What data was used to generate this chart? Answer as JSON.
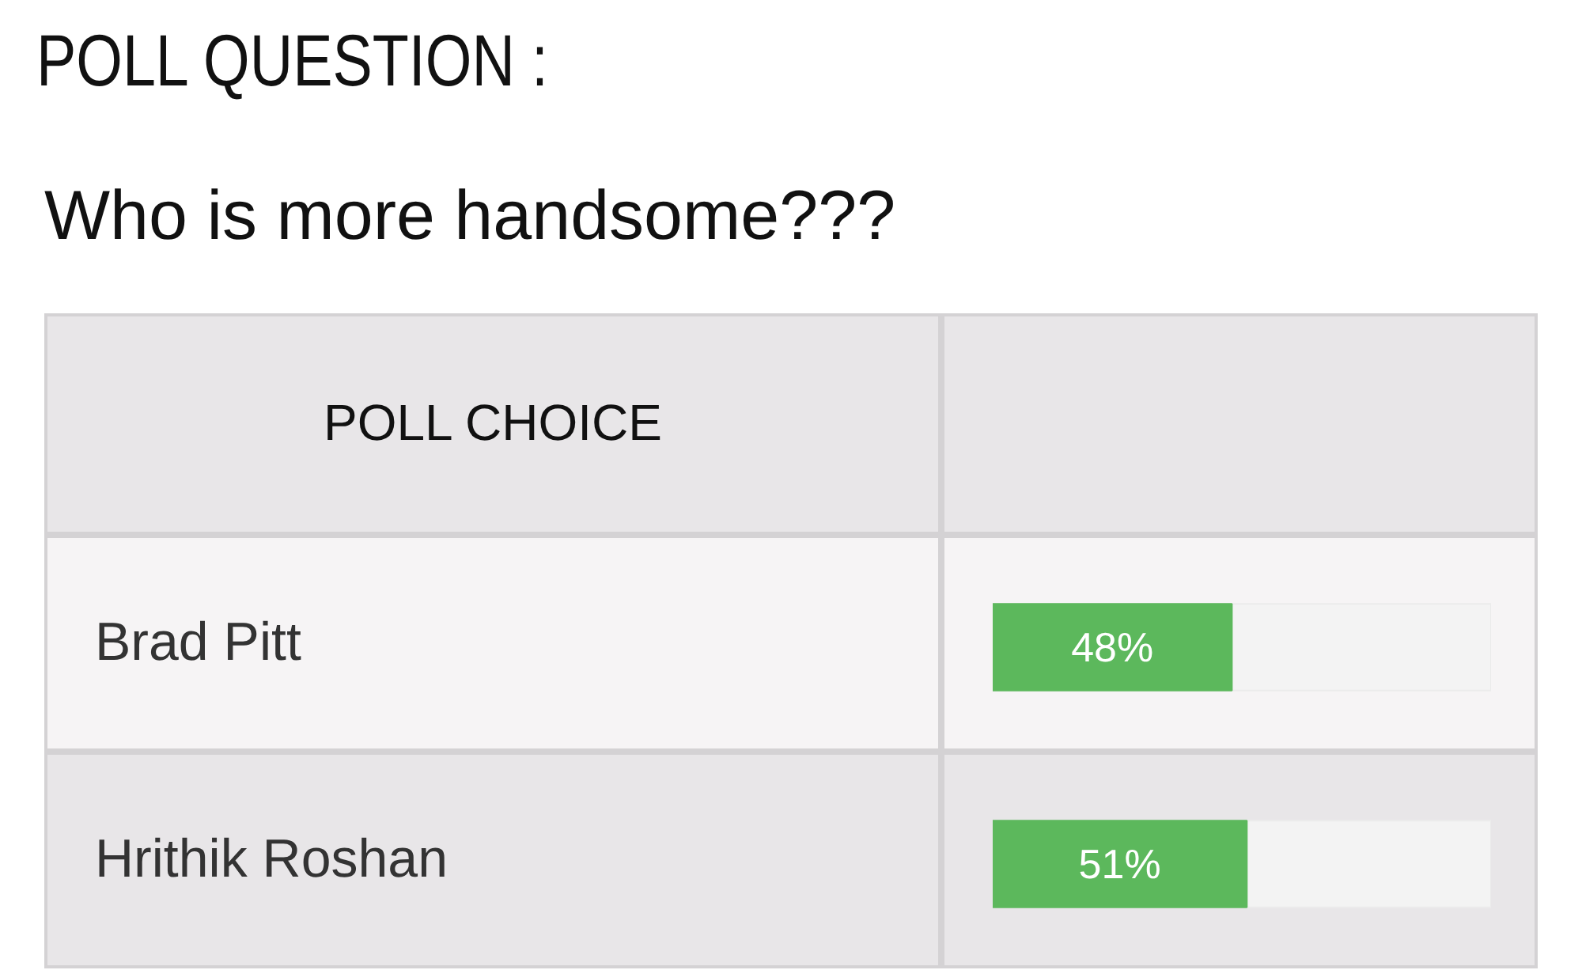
{
  "chart_data": {
    "type": "bar",
    "orientation": "horizontal",
    "title": "POLL QUESTION :",
    "subtitle": "Who is more handsome???",
    "ylabel": "POLL CHOICE",
    "categories": [
      "Brad Pitt",
      "Hrithik Roshan"
    ],
    "values": [
      48,
      51
    ],
    "value_labels": [
      "48%",
      "51%"
    ],
    "color": "#5cb85c",
    "xlim": [
      0,
      100
    ],
    "tick_labels": false
  }
}
